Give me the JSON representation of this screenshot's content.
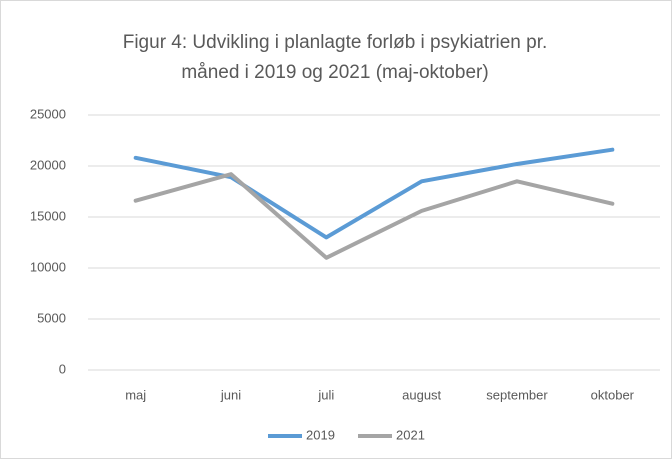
{
  "chart_data": {
    "type": "line",
    "title": "Figur 4: Udvikling i planlagte forløb i psykiatrien pr. måned i 2019 og 2021 (maj-oktober)",
    "categories": [
      "maj",
      "juni",
      "juli",
      "august",
      "september",
      "oktober"
    ],
    "series": [
      {
        "name": "2019",
        "color": "#5b9bd5",
        "values": [
          20800,
          18900,
          13000,
          18500,
          20200,
          21600
        ]
      },
      {
        "name": "2021",
        "color": "#a5a5a5",
        "values": [
          16600,
          19200,
          11000,
          15600,
          18500,
          16300
        ]
      }
    ],
    "ylim": [
      0,
      25000
    ],
    "yticks": [
      0,
      5000,
      10000,
      15000,
      20000,
      25000
    ],
    "grid": true,
    "legend": "bottom"
  }
}
